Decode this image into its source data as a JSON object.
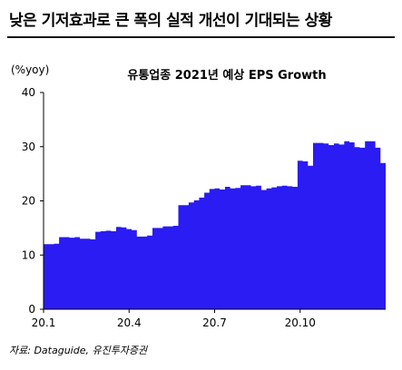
{
  "headline": "낮은 기저효과로 큰 폭의 실적 개선이 기대되는 상황",
  "source": "자료: Dataguide, 유진투자증권",
  "colors": {
    "area": "#2a1cf2",
    "axis": "#000000"
  },
  "chart_data": {
    "type": "area",
    "title": "유통업종 2021년 예상 EPS Growth",
    "ylabel": "(%yoy)",
    "xlabel": "",
    "ylim": [
      0,
      40
    ],
    "yticks": [
      0,
      10,
      20,
      30,
      40
    ],
    "xticks": [
      "20.1",
      "20.4",
      "20.7",
      "20.10"
    ],
    "grid": false,
    "series": [
      {
        "values": [
          12.0,
          12.0,
          12.1,
          13.3,
          13.3,
          13.2,
          13.3,
          13.0,
          13.0,
          12.9,
          14.3,
          14.4,
          14.5,
          14.4,
          15.2,
          15.1,
          14.8,
          14.6,
          13.4,
          13.4,
          13.6,
          15.0,
          15.0,
          15.3,
          15.3,
          15.4,
          19.2,
          19.2,
          19.7,
          20.1,
          20.6,
          21.5,
          22.2,
          22.3,
          22.1,
          22.6,
          22.3,
          22.4,
          22.9,
          22.9,
          22.7,
          22.8,
          22.0,
          22.3,
          22.5,
          22.7,
          22.8,
          22.7,
          22.6,
          27.4,
          27.3,
          26.5,
          30.7,
          30.7,
          30.6,
          30.3,
          30.6,
          30.4,
          31.0,
          30.8,
          29.9,
          29.8,
          31.0,
          31.0,
          29.8,
          27.0
        ]
      }
    ]
  }
}
